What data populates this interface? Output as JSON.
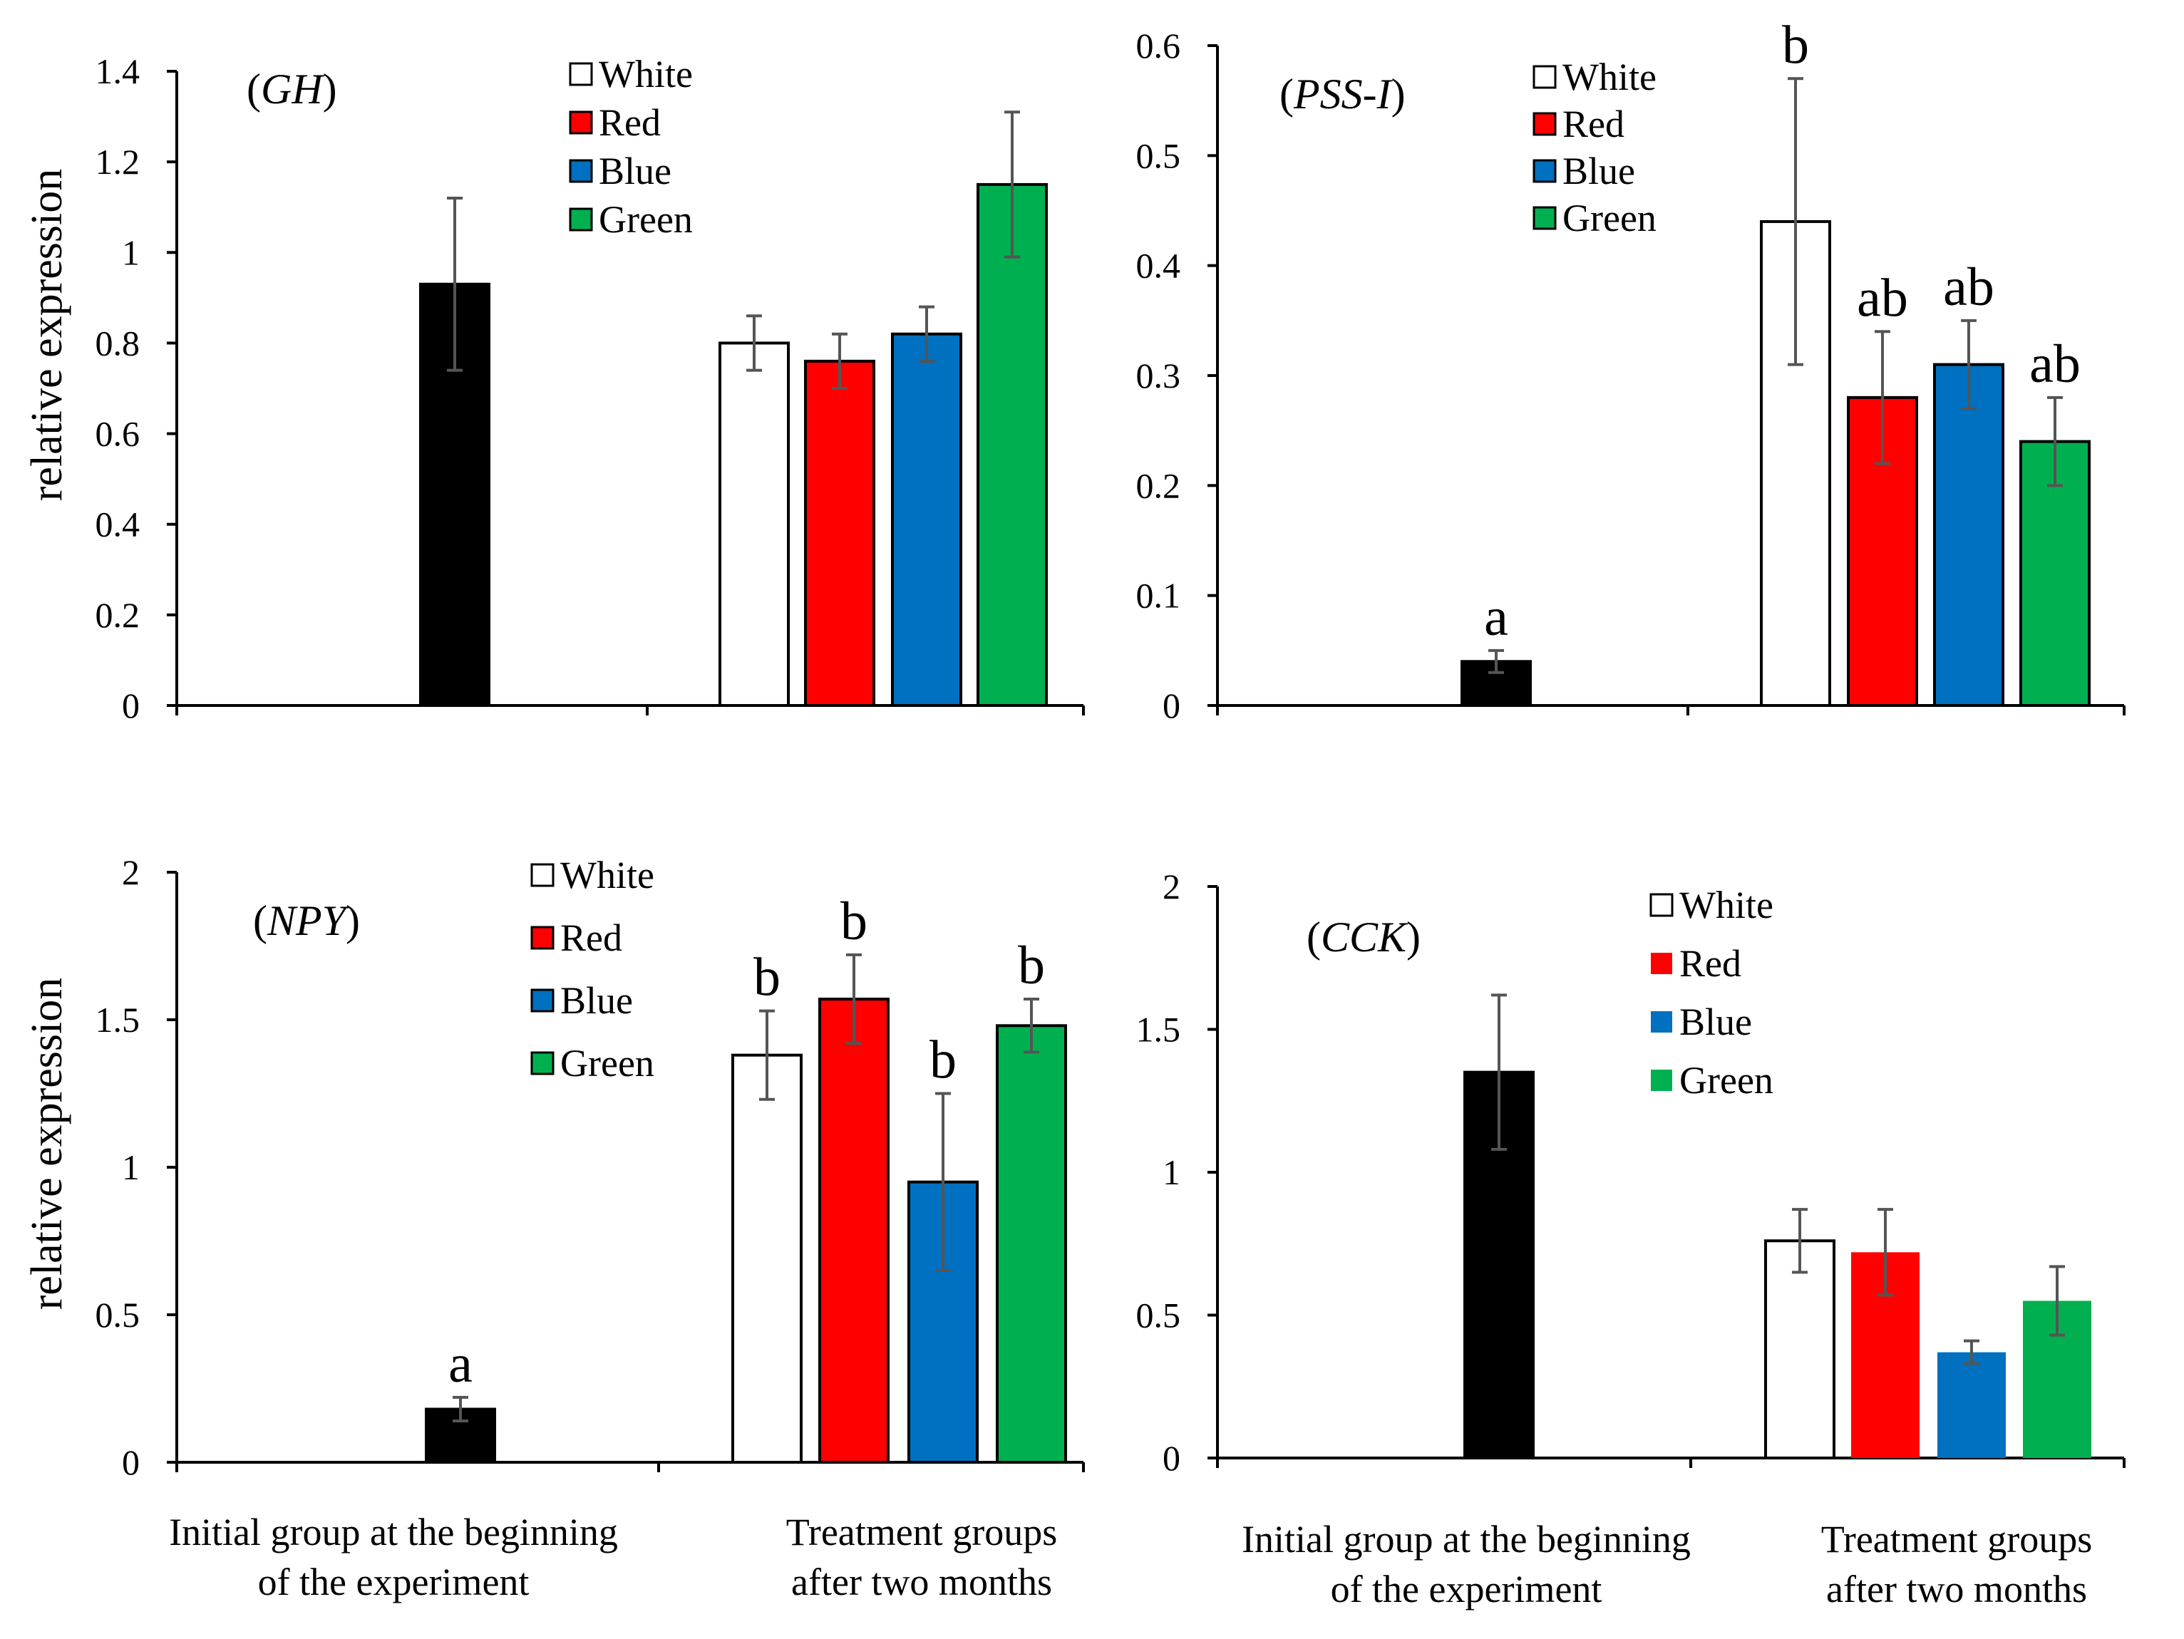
{
  "figure": {
    "y_axis_label": "relative expression",
    "group_labels": {
      "initial": [
        "Initial group at the beginning",
        "of the experiment"
      ],
      "treatment": [
        "Treatment groups",
        "after two months"
      ]
    },
    "colors": {
      "Initial": "#000000",
      "White": "#ffffff",
      "Red": "#ff0000",
      "Blue": "#0070c0",
      "Green": "#00b050"
    }
  },
  "chart_data": [
    {
      "type": "bar",
      "id": "gh",
      "title": "GH",
      "legend": [
        "White",
        "Red",
        "Blue",
        "Green"
      ],
      "ylabel": "relative expression",
      "ylim": [
        0,
        1.4
      ],
      "yticks": [
        "0",
        "0.2",
        "0.4",
        "0.6",
        "0.8",
        "1",
        "1.2",
        "1.4"
      ],
      "initial": {
        "value": 0.93,
        "error": 0.19,
        "letter": ""
      },
      "series": [
        {
          "name": "White",
          "value": 0.8,
          "error": 0.06,
          "letter": ""
        },
        {
          "name": "Red",
          "value": 0.76,
          "error": 0.06,
          "letter": ""
        },
        {
          "name": "Blue",
          "value": 0.82,
          "error": 0.06,
          "letter": ""
        },
        {
          "name": "Green",
          "value": 1.15,
          "error": 0.16,
          "letter": ""
        }
      ]
    },
    {
      "type": "bar",
      "id": "pss1",
      "title": "PSS-I",
      "legend": [
        "White",
        "Red",
        "Blue",
        "Green"
      ],
      "ylabel": "",
      "ylim": [
        0,
        0.6
      ],
      "yticks": [
        "0",
        "0.1",
        "0.2",
        "0.3",
        "0.4",
        "0.5",
        "0.6"
      ],
      "initial": {
        "value": 0.04,
        "error": 0.01,
        "letter": "a"
      },
      "series": [
        {
          "name": "White",
          "value": 0.44,
          "error": 0.13,
          "letter": "b"
        },
        {
          "name": "Red",
          "value": 0.28,
          "error": 0.06,
          "letter": "ab"
        },
        {
          "name": "Blue",
          "value": 0.31,
          "error": 0.04,
          "letter": "ab"
        },
        {
          "name": "Green",
          "value": 0.24,
          "error": 0.04,
          "letter": "ab"
        }
      ]
    },
    {
      "type": "bar",
      "id": "npy",
      "title": "NPY",
      "legend": [
        "White",
        "Red",
        "Blue",
        "Green"
      ],
      "ylabel": "relative expression",
      "ylim": [
        0,
        2
      ],
      "yticks": [
        "0",
        "0.5",
        "1",
        "1.5",
        "2"
      ],
      "initial": {
        "value": 0.18,
        "error": 0.04,
        "letter": "a"
      },
      "series": [
        {
          "name": "White",
          "value": 1.38,
          "error": 0.15,
          "letter": "b"
        },
        {
          "name": "Red",
          "value": 1.57,
          "error": 0.15,
          "letter": "b"
        },
        {
          "name": "Blue",
          "value": 0.95,
          "error": 0.3,
          "letter": "b"
        },
        {
          "name": "Green",
          "value": 1.48,
          "error": 0.09,
          "letter": "b"
        }
      ]
    },
    {
      "type": "bar",
      "id": "cck",
      "title": "CCK",
      "legend": [
        "White",
        "Red",
        "Blue",
        "Green"
      ],
      "ylabel": "",
      "ylim": [
        0,
        2
      ],
      "yticks": [
        "0",
        "0.5",
        "1",
        "1.5",
        "2"
      ],
      "initial": {
        "value": 1.35,
        "error": 0.27,
        "letter": ""
      },
      "series": [
        {
          "name": "White",
          "value": 0.76,
          "error": 0.11,
          "letter": ""
        },
        {
          "name": "Red",
          "value": 0.72,
          "error": 0.15,
          "letter": ""
        },
        {
          "name": "Blue",
          "value": 0.37,
          "error": 0.04,
          "letter": ""
        },
        {
          "name": "Green",
          "value": 0.55,
          "error": 0.12,
          "letter": ""
        }
      ]
    }
  ]
}
